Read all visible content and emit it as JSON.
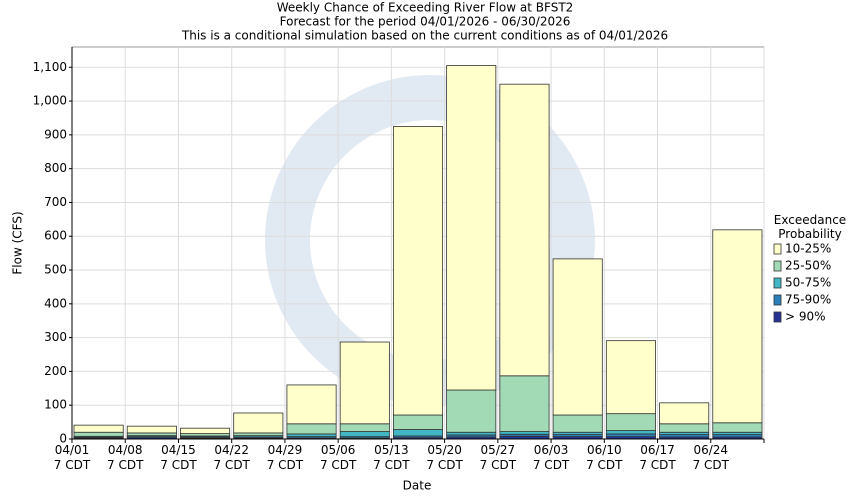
{
  "chart_data": {
    "type": "stacked_bar",
    "title": "Weekly Chance of Exceeding River Flow at BFST2",
    "subtitle": [
      "Forecast for the period 04/01/2026 - 06/30/2026",
      "This is a conditional simulation based on the current conditions as of 04/01/2026"
    ],
    "y_label": "Flow (CFS)",
    "x_label": "Date",
    "legend_title": "Exceedance Probability",
    "categories": [
      "04/01\n7 CDT",
      "04/08\n7 CDT",
      "04/15\n7 CDT",
      "04/22\n7 CDT",
      "04/29\n7 CDT",
      "05/06\n7 CDT",
      "05/13\n7 CDT",
      "05/20\n7 CDT",
      "05/27\n7 CDT",
      "06/03\n7 CDT",
      "06/10\n7 CDT",
      "06/17\n7 CDT",
      "06/24\n7 CDT"
    ],
    "series": [
      {
        "name": "> 90%",
        "color": "#253494",
        "values": [
          3,
          4,
          3,
          3,
          3,
          3,
          4,
          6,
          8,
          7,
          7,
          6,
          6
        ]
      },
      {
        "name": "75-90%",
        "color": "#2c7fb8",
        "values": [
          2,
          3,
          3,
          3,
          4,
          4,
          5,
          6,
          6,
          6,
          8,
          7,
          7
        ]
      },
      {
        "name": "50-75%",
        "color": "#41b6c4",
        "values": [
          3,
          3,
          3,
          4,
          8,
          15,
          19,
          8,
          8,
          7,
          10,
          7,
          7
        ]
      },
      {
        "name": "25-50%",
        "color": "#a1dab4",
        "values": [
          12,
          8,
          7,
          8,
          30,
          23,
          43,
          125,
          165,
          51,
          50,
          25,
          28
        ]
      },
      {
        "name": "10-25%",
        "color": "#ffffcc",
        "values": [
          21,
          20,
          16,
          59,
          115,
          242,
          854,
          960,
          863,
          462,
          216,
          62,
          571
        ]
      }
    ],
    "ylim": [
      0,
      1160
    ],
    "yticks": [
      0,
      100,
      200,
      300,
      400,
      500,
      600,
      700,
      800,
      900,
      {
        "value": 1000,
        "label": "1,000"
      },
      {
        "value": 1100,
        "label": "1,100"
      }
    ],
    "grid": true
  }
}
